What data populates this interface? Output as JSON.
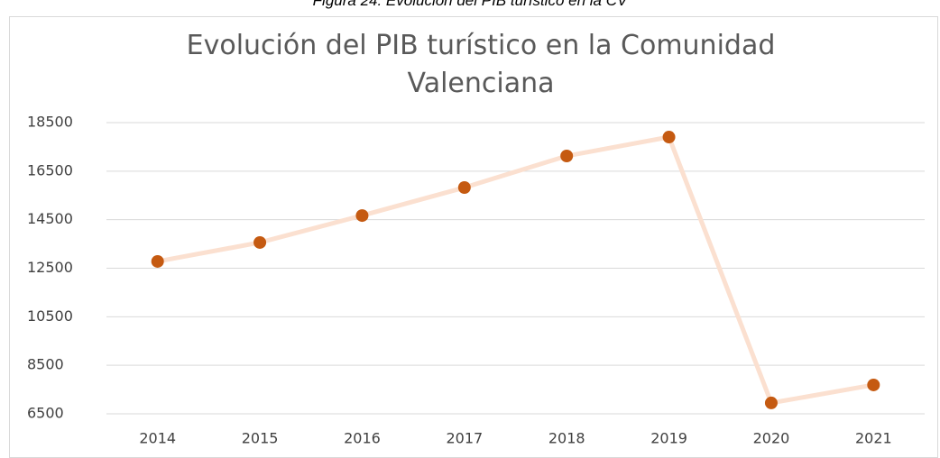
{
  "caption": "Figura 24: Evolución del PIB turístico en la CV",
  "chart_data": {
    "type": "line",
    "title": "Evolución del PIB turístico en la Comunidad Valenciana",
    "categories": [
      "2014",
      "2015",
      "2016",
      "2017",
      "2018",
      "2019",
      "2020",
      "2021"
    ],
    "values": [
      12780,
      13560,
      14670,
      15825,
      17125,
      17905,
      6950,
      7690
    ],
    "color": "#fbe0d0",
    "marker_color": "#c55a11",
    "ylim": [
      6500,
      18500
    ],
    "yticks": [
      6500,
      8500,
      10500,
      12500,
      14500,
      16500,
      18500
    ],
    "grid": true
  }
}
